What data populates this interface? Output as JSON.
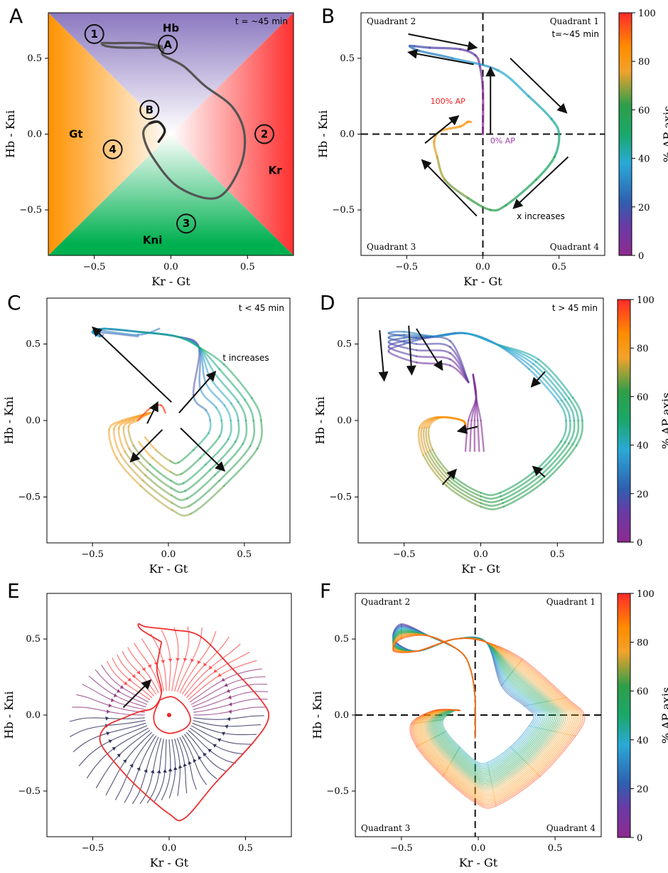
{
  "colors": {
    "ap_colormap": [
      "#8e2a8e",
      "#6a3aa5",
      "#2f5fb0",
      "#2aa9d6",
      "#1aa86a",
      "#2e9e4a",
      "#f2a22b",
      "#ff8c00",
      "#ff2a2a"
    ],
    "gt": "#ff9200",
    "hb": "#8b78c0",
    "kr": "#ff3030",
    "kni": "#00b050",
    "field_lo": "#1a1a4a",
    "field_mid": "#8a2a78",
    "field_hi": "#ff3b3b"
  },
  "common": {
    "xlabel": "Kr - Gt",
    "ylabel": "Hb - Kni",
    "xticks": [
      "−0.5",
      "0.0",
      "0.5"
    ],
    "yticks": [
      "0.5",
      "0.0",
      "−0.5"
    ],
    "colorbar_label": "% AP axis",
    "colorbar_ticks": [
      "0",
      "20",
      "40",
      "60",
      "80",
      "100"
    ]
  },
  "chart_data": [
    {
      "panel": "A",
      "type": "line",
      "xlim": [
        -0.8,
        0.8
      ],
      "ylim": [
        -0.8,
        0.8
      ],
      "time_label": "t = ~45 min",
      "region_labels": [
        "Hb",
        "Gt",
        "Kr",
        "Kni"
      ],
      "markers": [
        "1",
        "2",
        "3",
        "4",
        "A",
        "B"
      ],
      "series": [
        {
          "x": [
            -0.08,
            -0.04,
            -0.08,
            -0.14,
            -0.18,
            -0.12,
            0.05,
            0.3,
            0.45,
            0.48,
            0.4,
            0.22,
            0.08,
            -0.05,
            -0.05,
            -0.1,
            -0.3,
            -0.42,
            -0.45,
            -0.38,
            -0.2,
            -0.06
          ],
          "y": [
            -0.05,
            0.02,
            0.08,
            0.07,
            0.0,
            -0.15,
            -0.35,
            -0.42,
            -0.22,
            0.0,
            0.18,
            0.32,
            0.45,
            0.52,
            0.56,
            0.57,
            0.57,
            0.58,
            0.6,
            0.6,
            0.6,
            0.58
          ]
        }
      ]
    },
    {
      "panel": "B",
      "type": "line",
      "xlim": [
        -0.8,
        0.8
      ],
      "ylim": [
        -0.8,
        0.8
      ],
      "time_label": "t=~45 min",
      "quadrant_labels": [
        "Quadrant 2",
        "Quadrant 1",
        "Quadrant 3",
        "Quadrant 4"
      ],
      "annotations": [
        "100% AP",
        "0% AP",
        "x increases"
      ],
      "series": [
        {
          "x": [
            0.0,
            0.0,
            -0.02,
            -0.05,
            -0.15,
            -0.35,
            -0.45,
            -0.48,
            -0.42,
            -0.2,
            0.1,
            0.3,
            0.45,
            0.5,
            0.47,
            0.35,
            0.15,
            0.05,
            -0.1,
            -0.25,
            -0.3,
            -0.32,
            -0.28,
            -0.15,
            -0.1,
            -0.08
          ],
          "y": [
            0.0,
            0.3,
            0.45,
            0.52,
            0.56,
            0.57,
            0.58,
            0.58,
            0.55,
            0.5,
            0.42,
            0.25,
            0.1,
            0.0,
            -0.15,
            -0.3,
            -0.47,
            -0.5,
            -0.42,
            -0.3,
            -0.15,
            -0.05,
            0.02,
            0.05,
            0.08,
            0.08
          ]
        }
      ]
    },
    {
      "panel": "C",
      "type": "line",
      "xlim": [
        -0.8,
        0.8
      ],
      "ylim": [
        -0.8,
        0.8
      ],
      "time_label": "t < 45 min",
      "annotations": [
        "t increases"
      ],
      "series_scales": [
        0.55,
        0.7,
        0.82,
        0.92,
        1.02,
        1.12,
        1.22
      ]
    },
    {
      "panel": "D",
      "type": "line",
      "xlim": [
        -0.8,
        0.8
      ],
      "ylim": [
        -0.8,
        0.8
      ],
      "time_label": "t > 45 min",
      "series_scales": [
        1.05,
        1.1,
        1.15,
        1.2,
        1.25
      ]
    },
    {
      "panel": "E",
      "type": "streamplot",
      "xlim": [
        -0.8,
        0.8
      ],
      "ylim": [
        -0.8,
        0.8
      ],
      "fixed_point": [
        0.0,
        0.0
      ]
    },
    {
      "panel": "F",
      "type": "line",
      "xlim": [
        -0.8,
        0.8
      ],
      "ylim": [
        -0.8,
        0.8
      ],
      "quadrant_labels": [
        "Quadrant 2",
        "Quadrant 1",
        "Quadrant 3",
        "Quadrant 4"
      ],
      "series_count": 28
    }
  ],
  "panel_letters": [
    "A",
    "B",
    "C",
    "D",
    "E",
    "F"
  ]
}
